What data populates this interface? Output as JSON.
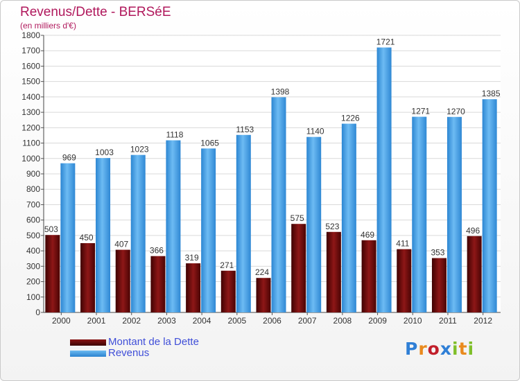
{
  "chart_title": "Revenus/Dette - BERSéE",
  "chart_subtitle": "(en milliers d'€)",
  "legend": [
    {
      "label": "Montant de la Dette",
      "color": "#6b0a0a"
    },
    {
      "label": "Revenus",
      "color": "#4aa3e8"
    }
  ],
  "logo_text": "Proxiti",
  "logo_colors": [
    "#2f7fd6",
    "#e98a1e",
    "#c11f2b",
    "#2f7fd6",
    "#7fbf2a",
    "#e98a1e",
    "#7fbf2a"
  ],
  "chart_data": {
    "type": "bar",
    "title": "Revenus/Dette - BERSéE",
    "subtitle": "(en milliers d'€)",
    "categories": [
      "2000",
      "2001",
      "2002",
      "2003",
      "2004",
      "2005",
      "2006",
      "2007",
      "2008",
      "2009",
      "2010",
      "2011",
      "2012"
    ],
    "series": [
      {
        "name": "Montant de la Dette",
        "color": "#6b0a0a",
        "values": [
          503,
          450,
          407,
          366,
          319,
          271,
          224,
          575,
          523,
          469,
          411,
          353,
          496
        ]
      },
      {
        "name": "Revenus",
        "color": "#4aa3e8",
        "values": [
          969,
          1003,
          1023,
          1118,
          1065,
          1153,
          1398,
          1140,
          1226,
          1721,
          1271,
          1270,
          1385
        ]
      }
    ],
    "ylim": [
      0,
      1800
    ],
    "ytick_step": 100,
    "grid": true,
    "legend_position": "bottom-left"
  }
}
